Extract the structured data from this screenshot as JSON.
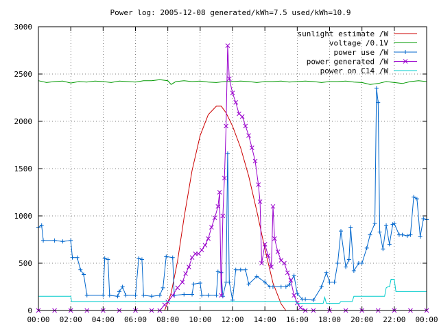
{
  "chart_data": {
    "type": "line",
    "title": "Power log: 2005-12-08 generated/kWh=7.5 used/kWh=10.9",
    "xlabel": "",
    "ylabel": "",
    "x_ticks": [
      "00:00",
      "02:00",
      "04:00",
      "06:00",
      "08:00",
      "10:00",
      "12:00",
      "14:00",
      "16:00",
      "18:00",
      "20:00",
      "22:00",
      "00:00"
    ],
    "y_ticks": [
      "0",
      "500",
      "1000",
      "1500",
      "2000",
      "2500",
      "3000"
    ],
    "xlim": [
      0,
      24
    ],
    "ylim": [
      0,
      3000
    ],
    "grid": true,
    "legend_position": "top-right",
    "series": [
      {
        "name": "sunlight estimate /W",
        "color": "#cc0000",
        "style": "line",
        "points": [
          [
            7.8,
            0
          ],
          [
            8.2,
            180
          ],
          [
            8.6,
            520
          ],
          [
            9.0,
            980
          ],
          [
            9.5,
            1480
          ],
          [
            10.0,
            1850
          ],
          [
            10.5,
            2070
          ],
          [
            11.0,
            2160
          ],
          [
            11.3,
            2160
          ],
          [
            11.6,
            2090
          ],
          [
            12.0,
            1950
          ],
          [
            12.5,
            1720
          ],
          [
            13.0,
            1420
          ],
          [
            13.5,
            1050
          ],
          [
            14.0,
            650
          ],
          [
            14.5,
            290
          ],
          [
            15.0,
            70
          ],
          [
            15.3,
            0
          ]
        ]
      },
      {
        "name": "voltage /0.1V",
        "color": "#009900",
        "style": "line",
        "points": [
          [
            0,
            2430
          ],
          [
            0.5,
            2410
          ],
          [
            1,
            2420
          ],
          [
            1.5,
            2425
          ],
          [
            2,
            2405
          ],
          [
            2.5,
            2420
          ],
          [
            3,
            2415
          ],
          [
            3.5,
            2425
          ],
          [
            4,
            2420
          ],
          [
            4.5,
            2410
          ],
          [
            5,
            2425
          ],
          [
            5.5,
            2420
          ],
          [
            6,
            2415
          ],
          [
            6.5,
            2430
          ],
          [
            7,
            2430
          ],
          [
            7.5,
            2440
          ],
          [
            8,
            2430
          ],
          [
            8.2,
            2390
          ],
          [
            8.5,
            2420
          ],
          [
            9,
            2430
          ],
          [
            9.5,
            2420
          ],
          [
            10,
            2425
          ],
          [
            10.5,
            2415
          ],
          [
            11,
            2410
          ],
          [
            11.5,
            2420
          ],
          [
            12,
            2420
          ],
          [
            12.5,
            2425
          ],
          [
            13,
            2420
          ],
          [
            13.5,
            2410
          ],
          [
            14,
            2420
          ],
          [
            14.5,
            2420
          ],
          [
            15,
            2425
          ],
          [
            15.5,
            2415
          ],
          [
            16,
            2420
          ],
          [
            16.5,
            2425
          ],
          [
            17,
            2420
          ],
          [
            17.5,
            2410
          ],
          [
            18,
            2420
          ],
          [
            18.5,
            2420
          ],
          [
            19,
            2425
          ],
          [
            19.5,
            2415
          ],
          [
            20,
            2410
          ],
          [
            20.5,
            2390
          ],
          [
            21,
            2400
          ],
          [
            21.5,
            2420
          ],
          [
            22,
            2410
          ],
          [
            22.5,
            2400
          ],
          [
            23,
            2420
          ],
          [
            23.5,
            2430
          ],
          [
            24,
            2420
          ]
        ]
      },
      {
        "name": "power use /W",
        "color": "#0066cc",
        "style": "linespoints",
        "marker": "plus",
        "points": [
          [
            0,
            880
          ],
          [
            0.2,
            900
          ],
          [
            0.3,
            740
          ],
          [
            1.0,
            740
          ],
          [
            1.5,
            730
          ],
          [
            2.0,
            740
          ],
          [
            2.1,
            560
          ],
          [
            2.4,
            560
          ],
          [
            2.6,
            430
          ],
          [
            2.8,
            380
          ],
          [
            3.0,
            160
          ],
          [
            4.0,
            160
          ],
          [
            4.1,
            550
          ],
          [
            4.3,
            540
          ],
          [
            4.4,
            160
          ],
          [
            4.9,
            150
          ],
          [
            5.0,
            200
          ],
          [
            5.2,
            250
          ],
          [
            5.4,
            160
          ],
          [
            6.0,
            160
          ],
          [
            6.2,
            550
          ],
          [
            6.4,
            540
          ],
          [
            6.5,
            160
          ],
          [
            7.0,
            150
          ],
          [
            7.5,
            160
          ],
          [
            7.7,
            240
          ],
          [
            7.9,
            570
          ],
          [
            8.3,
            560
          ],
          [
            8.4,
            160
          ],
          [
            9.0,
            170
          ],
          [
            9.5,
            170
          ],
          [
            9.6,
            280
          ],
          [
            10.0,
            290
          ],
          [
            10.1,
            160
          ],
          [
            10.5,
            160
          ],
          [
            11.0,
            160
          ],
          [
            11.1,
            410
          ],
          [
            11.3,
            400
          ],
          [
            11.4,
            150
          ],
          [
            11.6,
            300
          ],
          [
            11.7,
            1660
          ],
          [
            11.8,
            300
          ],
          [
            12.0,
            110
          ],
          [
            12.2,
            430
          ],
          [
            12.5,
            430
          ],
          [
            12.8,
            430
          ],
          [
            13.0,
            280
          ],
          [
            13.5,
            360
          ],
          [
            14.0,
            300
          ],
          [
            14.3,
            250
          ],
          [
            14.5,
            250
          ],
          [
            15.0,
            250
          ],
          [
            15.3,
            250
          ],
          [
            15.5,
            270
          ],
          [
            15.8,
            370
          ],
          [
            16.0,
            180
          ],
          [
            16.3,
            120
          ],
          [
            16.5,
            120
          ],
          [
            17.0,
            110
          ],
          [
            17.5,
            250
          ],
          [
            17.8,
            400
          ],
          [
            18.0,
            300
          ],
          [
            18.3,
            300
          ],
          [
            18.5,
            500
          ],
          [
            18.7,
            840
          ],
          [
            19.0,
            460
          ],
          [
            19.2,
            540
          ],
          [
            19.3,
            880
          ],
          [
            19.5,
            420
          ],
          [
            19.8,
            500
          ],
          [
            20.0,
            500
          ],
          [
            20.3,
            660
          ],
          [
            20.5,
            800
          ],
          [
            20.8,
            920
          ],
          [
            20.9,
            2350
          ],
          [
            21.0,
            2200
          ],
          [
            21.1,
            830
          ],
          [
            21.3,
            650
          ],
          [
            21.5,
            900
          ],
          [
            21.7,
            700
          ],
          [
            21.9,
            910
          ],
          [
            22.0,
            920
          ],
          [
            22.3,
            800
          ],
          [
            22.5,
            800
          ],
          [
            22.8,
            790
          ],
          [
            23.0,
            800
          ],
          [
            23.2,
            1200
          ],
          [
            23.4,
            1180
          ],
          [
            23.6,
            780
          ],
          [
            23.8,
            970
          ],
          [
            24.0,
            960
          ]
        ]
      },
      {
        "name": "power generated /W",
        "color": "#9900cc",
        "style": "linespoints",
        "marker": "cross",
        "points": [
          [
            0,
            0
          ],
          [
            1,
            0
          ],
          [
            2,
            0
          ],
          [
            3,
            0
          ],
          [
            4,
            0
          ],
          [
            5,
            0
          ],
          [
            6,
            0
          ],
          [
            7,
            0
          ],
          [
            7.5,
            0
          ],
          [
            7.8,
            60
          ],
          [
            8.0,
            90
          ],
          [
            8.3,
            160
          ],
          [
            8.6,
            240
          ],
          [
            8.9,
            300
          ],
          [
            9.1,
            390
          ],
          [
            9.3,
            460
          ],
          [
            9.5,
            560
          ],
          [
            9.7,
            600
          ],
          [
            9.9,
            600
          ],
          [
            10.1,
            640
          ],
          [
            10.3,
            690
          ],
          [
            10.5,
            760
          ],
          [
            10.7,
            880
          ],
          [
            10.9,
            980
          ],
          [
            11.1,
            1100
          ],
          [
            11.2,
            1250
          ],
          [
            11.3,
            160
          ],
          [
            11.4,
            1000
          ],
          [
            11.5,
            1400
          ],
          [
            11.6,
            1950
          ],
          [
            11.7,
            2800
          ],
          [
            11.8,
            2450
          ],
          [
            12.0,
            2300
          ],
          [
            12.2,
            2200
          ],
          [
            12.4,
            2080
          ],
          [
            12.6,
            2050
          ],
          [
            12.8,
            1950
          ],
          [
            13.0,
            1850
          ],
          [
            13.2,
            1720
          ],
          [
            13.4,
            1580
          ],
          [
            13.6,
            1330
          ],
          [
            13.7,
            1150
          ],
          [
            13.8,
            500
          ],
          [
            14.0,
            700
          ],
          [
            14.2,
            580
          ],
          [
            14.4,
            460
          ],
          [
            14.5,
            1100
          ],
          [
            14.6,
            760
          ],
          [
            14.8,
            620
          ],
          [
            15.0,
            530
          ],
          [
            15.2,
            500
          ],
          [
            15.4,
            400
          ],
          [
            15.6,
            320
          ],
          [
            15.8,
            160
          ],
          [
            16.0,
            80
          ],
          [
            16.2,
            30
          ],
          [
            16.5,
            0
          ],
          [
            17,
            0
          ],
          [
            18,
            0
          ],
          [
            19,
            0
          ],
          [
            20,
            0
          ],
          [
            21,
            0
          ],
          [
            22,
            0
          ],
          [
            23,
            0
          ],
          [
            24,
            0
          ]
        ]
      },
      {
        "name": "power on C14 /W",
        "color": "#00cccc",
        "style": "line",
        "points": [
          [
            0,
            150
          ],
          [
            1.0,
            150
          ],
          [
            2.0,
            150
          ],
          [
            2.05,
            95
          ],
          [
            4,
            95
          ],
          [
            6,
            95
          ],
          [
            8,
            95
          ],
          [
            10,
            95
          ],
          [
            12,
            95
          ],
          [
            14,
            95
          ],
          [
            15.9,
            95
          ],
          [
            16.0,
            75
          ],
          [
            17,
            75
          ],
          [
            17.6,
            75
          ],
          [
            17.7,
            140
          ],
          [
            17.8,
            75
          ],
          [
            18.6,
            75
          ],
          [
            18.7,
            95
          ],
          [
            19.4,
            95
          ],
          [
            19.5,
            150
          ],
          [
            20,
            150
          ],
          [
            20.5,
            150
          ],
          [
            21.0,
            150
          ],
          [
            21.4,
            150
          ],
          [
            21.5,
            240
          ],
          [
            21.6,
            250
          ],
          [
            21.7,
            250
          ],
          [
            21.8,
            330
          ],
          [
            22.0,
            330
          ],
          [
            22.1,
            200
          ],
          [
            23,
            200
          ],
          [
            24,
            200
          ]
        ]
      }
    ]
  }
}
